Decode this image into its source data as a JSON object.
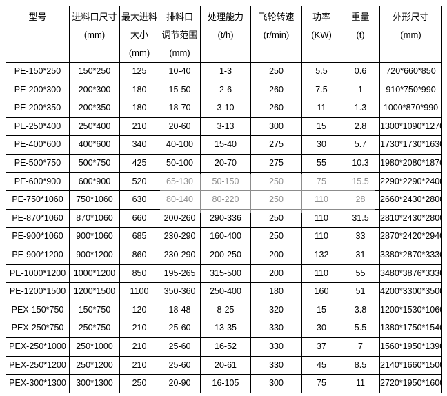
{
  "table": {
    "headers": [
      {
        "text": "型号"
      },
      {
        "text": "进料口尺寸\n(mm)"
      },
      {
        "text": "最大进料\n大小\n(mm)"
      },
      {
        "text": "排料口\n调节范围\n(mm)"
      },
      {
        "text": "处理能力\n(t/h)"
      },
      {
        "text": "飞轮转速\n(r/min)"
      },
      {
        "text": "功率\n(KW)"
      },
      {
        "text": "重量\n(t)"
      },
      {
        "text": "外形尺寸\n(mm)"
      }
    ],
    "rows": [
      [
        "PE-150*250",
        "150*250",
        "125",
        "10-40",
        "1-3",
        "250",
        "5.5",
        "0.6",
        "720*660*850"
      ],
      [
        "PE-200*300",
        "200*300",
        "180",
        "15-50",
        "2-6",
        "260",
        "7.5",
        "1",
        "910*750*990"
      ],
      [
        "PE-200*350",
        "200*350",
        "180",
        "18-70",
        "3-10",
        "260",
        "11",
        "1.3",
        "1000*870*990"
      ],
      [
        "PE-250*400",
        "250*400",
        "210",
        "20-60",
        "3-13",
        "300",
        "15",
        "2.8",
        "1300*1090*1270"
      ],
      [
        "PE-400*600",
        "400*600",
        "340",
        "40-100",
        "15-40",
        "275",
        "30",
        "5.7",
        "1730*1730*1630"
      ],
      [
        "PE-500*750",
        "500*750",
        "425",
        "50-100",
        "20-70",
        "275",
        "55",
        "10.3",
        "1980*2080*1870"
      ],
      [
        "PE-600*900",
        "600*900",
        "520",
        "65-130",
        "50-150",
        "250",
        "75",
        "15.5",
        "2290*2290*2400"
      ],
      [
        "PE-750*1060",
        "750*1060",
        "630",
        "80-140",
        "80-220",
        "250",
        "110",
        "28",
        "2660*2430*2800"
      ],
      [
        "PE-870*1060",
        "870*1060",
        "660",
        "200-260",
        "290-336",
        "250",
        "110",
        "31.5",
        "2810*2430*2800"
      ],
      [
        "PE-900*1060",
        "900*1060",
        "685",
        "230-290",
        "160-400",
        "250",
        "110",
        "33",
        "2870*2420*2940"
      ],
      [
        "PE-900*1200",
        "900*1200",
        "860",
        "230-290",
        "200-250",
        "200",
        "132",
        "31",
        "3380*2870*3330"
      ],
      [
        "PE-1000*1200",
        "1000*1200",
        "850",
        "195-265",
        "315-500",
        "200",
        "110",
        "55",
        "3480*3876*3330"
      ],
      [
        "PE-1200*1500",
        "1200*1500",
        "1100",
        "350-360",
        "250-400",
        "180",
        "160",
        "51",
        "4200*3300*3500"
      ],
      [
        "PEX-150*750",
        "150*750",
        "120",
        "18-48",
        "8-25",
        "320",
        "15",
        "3.8",
        "1200*1530*1060"
      ],
      [
        "PEX-250*750",
        "250*750",
        "210",
        "25-60",
        "13-35",
        "330",
        "30",
        "5.5",
        "1380*1750*1540"
      ],
      [
        "PEX-250*1000",
        "250*1000",
        "210",
        "25-60",
        "16-52",
        "330",
        "37",
        "7",
        "1560*1950*1390"
      ],
      [
        "PEX-250*1200",
        "250*1200",
        "210",
        "25-60",
        "20-61",
        "330",
        "45",
        "8.5",
        "2140*1660*1500"
      ],
      [
        "PEX-300*1300",
        "300*1300",
        "250",
        "20-90",
        "16-105",
        "300",
        "75",
        "11",
        "2720*1950*1600"
      ]
    ]
  },
  "colors": {
    "page_bg": "#ffffff",
    "table_border": "#000000",
    "text": "#000000",
    "watermark_overlay": "rgba(255,255,255,0.55)"
  }
}
